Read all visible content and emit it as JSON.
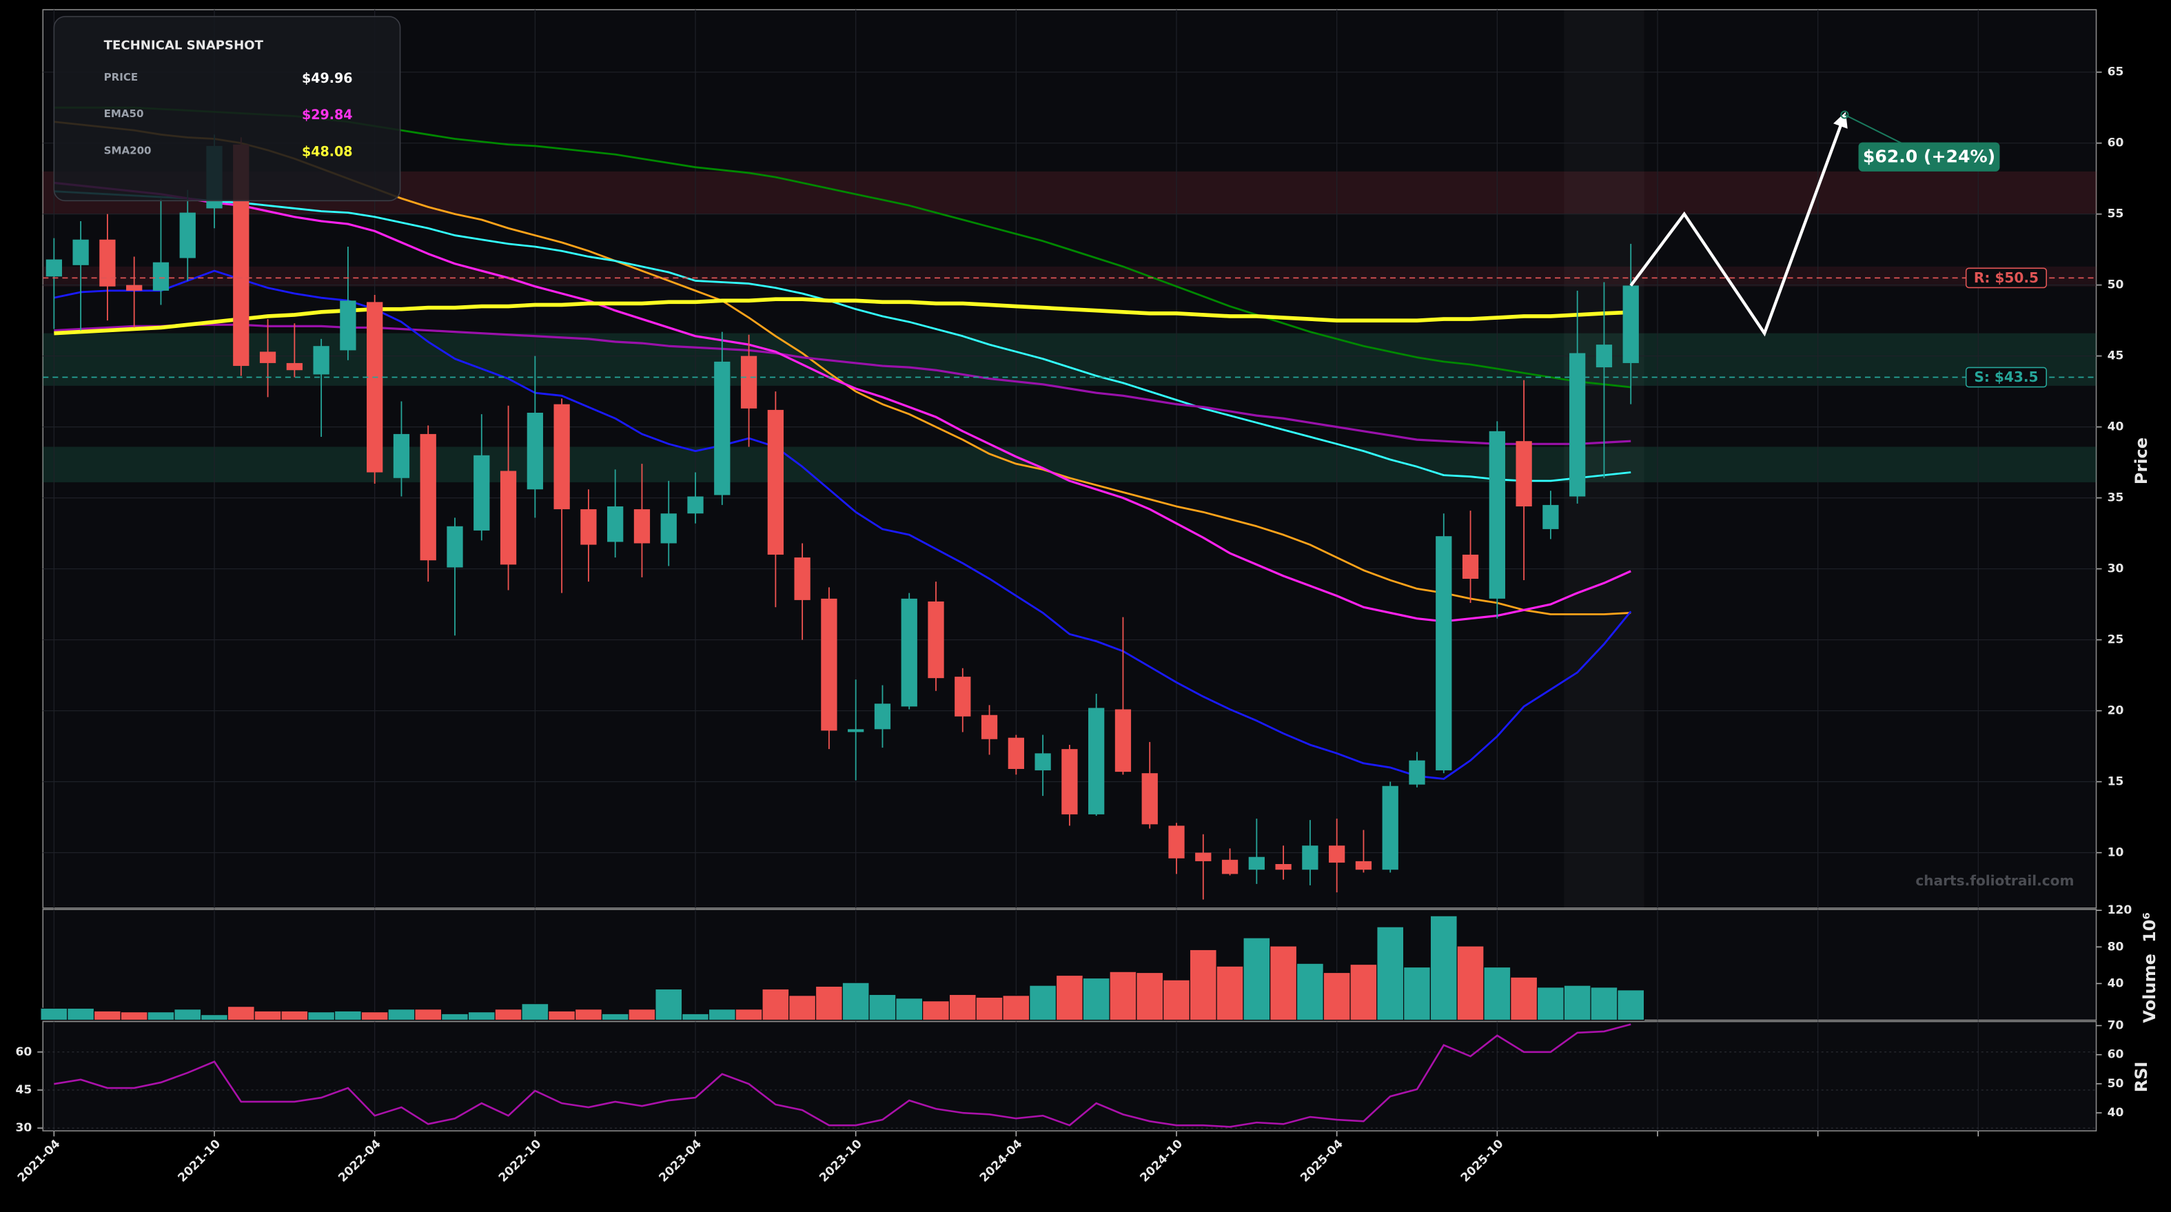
{
  "chart_data": {
    "type": "candlestick",
    "x": [
      "2021-04",
      "2021-05",
      "2021-06",
      "2021-07",
      "2021-08",
      "2021-09",
      "2021-10",
      "2021-11",
      "2021-12",
      "2022-01",
      "2022-02",
      "2022-03",
      "2022-04",
      "2022-05",
      "2022-06",
      "2022-07",
      "2022-08",
      "2022-09",
      "2022-10",
      "2022-11",
      "2022-12",
      "2023-01",
      "2023-02",
      "2023-03",
      "2023-04",
      "2023-05",
      "2023-06",
      "2023-07",
      "2023-08",
      "2023-09",
      "2023-10",
      "2023-11",
      "2023-12",
      "2024-01",
      "2024-02",
      "2024-03",
      "2024-04",
      "2024-05",
      "2024-06",
      "2024-07",
      "2024-08",
      "2024-09",
      "2024-10",
      "2024-11",
      "2024-12",
      "2025-01",
      "2025-02",
      "2025-03",
      "2025-04",
      "2025-05",
      "2025-06",
      "2025-07",
      "2025-08",
      "2025-09",
      "2025-10",
      "2025-11",
      "2025-12",
      "2026-01",
      "2026-02",
      "2026-03"
    ],
    "open": [
      50.6,
      51.4,
      53.2,
      50.0,
      49.6,
      51.9,
      55.4,
      59.9,
      45.3,
      44.5,
      43.7,
      45.4,
      48.8,
      36.4,
      39.5,
      30.1,
      32.7,
      36.9,
      35.6,
      41.6,
      34.2,
      31.9,
      34.2,
      31.8,
      33.9,
      35.2,
      45.0,
      41.2,
      30.8,
      27.9,
      18.5,
      18.7,
      20.3,
      27.7,
      22.4,
      19.7,
      18.1,
      15.8,
      17.3,
      12.7,
      20.1,
      15.6,
      11.9,
      10.0,
      9.5,
      8.8,
      9.2,
      8.8,
      10.5,
      9.4,
      8.8,
      14.8,
      15.8,
      31.0,
      27.9,
      39.0,
      32.8,
      35.1,
      44.2,
      44.5
    ],
    "high": [
      53.3,
      54.5,
      55.0,
      52.0,
      56.1,
      56.7,
      60.6,
      60.4,
      47.6,
      47.3,
      46.2,
      52.7,
      49.3,
      41.8,
      40.1,
      33.6,
      40.9,
      41.5,
      45.0,
      42.0,
      35.6,
      37.0,
      37.4,
      36.2,
      36.8,
      46.7,
      46.5,
      42.5,
      31.8,
      28.7,
      22.2,
      21.8,
      28.3,
      29.1,
      23.0,
      20.4,
      18.3,
      18.3,
      17.6,
      21.2,
      26.6,
      17.8,
      12.1,
      11.3,
      10.3,
      12.4,
      10.5,
      12.3,
      12.4,
      11.6,
      15.0,
      17.1,
      33.9,
      34.1,
      40.4,
      43.3,
      35.5,
      49.6,
      50.2,
      52.9
    ],
    "low": [
      46.9,
      46.8,
      47.5,
      47.0,
      48.6,
      50.3,
      54.0,
      43.6,
      42.1,
      43.5,
      39.3,
      44.7,
      36.0,
      35.1,
      29.1,
      25.3,
      32.0,
      28.5,
      33.6,
      28.3,
      29.1,
      30.8,
      29.4,
      30.2,
      33.2,
      34.5,
      38.6,
      27.3,
      25.0,
      17.3,
      15.1,
      17.4,
      20.1,
      21.4,
      18.5,
      16.9,
      15.5,
      14.0,
      11.9,
      12.6,
      15.5,
      11.7,
      8.5,
      6.7,
      8.4,
      7.8,
      8.1,
      7.7,
      7.2,
      8.6,
      8.6,
      14.6,
      15.6,
      27.6,
      26.5,
      29.2,
      32.1,
      34.6,
      36.4,
      41.6
    ],
    "close": [
      51.8,
      53.2,
      49.9,
      49.6,
      51.6,
      55.1,
      59.8,
      44.3,
      44.5,
      44.0,
      45.7,
      48.9,
      36.8,
      39.5,
      30.6,
      33.0,
      38.0,
      30.3,
      41.0,
      34.2,
      31.7,
      34.4,
      31.8,
      33.9,
      35.1,
      44.6,
      41.3,
      31.0,
      27.8,
      18.6,
      18.7,
      20.5,
      27.9,
      22.3,
      19.6,
      18.0,
      15.9,
      17.0,
      12.7,
      20.2,
      15.7,
      12.0,
      9.6,
      9.4,
      8.5,
      9.7,
      8.8,
      10.5,
      9.3,
      8.8,
      14.7,
      16.5,
      32.3,
      29.3,
      39.7,
      34.4,
      34.5,
      45.2,
      45.8,
      49.96
    ],
    "up_color": "#26a69a",
    "down_color": "#ef5350",
    "lines": [
      {
        "color": "#008800",
        "width": 1.4,
        "values": [
          62.5,
          62.5,
          62.5,
          62.5,
          62.4,
          62.3,
          62.2,
          62.1,
          62.0,
          61.9,
          61.7,
          61.5,
          61.2,
          60.9,
          60.6,
          60.3,
          60.1,
          59.9,
          59.8,
          59.6,
          59.4,
          59.2,
          58.9,
          58.6,
          58.3,
          58.1,
          57.9,
          57.6,
          57.2,
          56.8,
          56.4,
          56.0,
          55.6,
          55.1,
          54.6,
          54.1,
          53.6,
          53.1,
          52.5,
          51.9,
          51.3,
          50.6,
          49.9,
          49.2,
          48.5,
          47.9,
          47.3,
          46.7,
          46.2,
          45.7,
          45.3,
          44.9,
          44.6,
          44.4,
          44.1,
          43.8,
          43.5,
          43.2,
          43.0,
          42.8
        ]
      },
      {
        "color": "#ffa31a",
        "width": 1.4,
        "values": [
          61.5,
          61.3,
          61.1,
          60.9,
          60.6,
          60.4,
          60.3,
          60.0,
          59.5,
          58.9,
          58.2,
          57.5,
          56.8,
          56.1,
          55.5,
          55.0,
          54.6,
          54.0,
          53.5,
          53.0,
          52.4,
          51.7,
          51.0,
          50.3,
          49.6,
          48.9,
          47.7,
          46.4,
          45.2,
          43.8,
          42.5,
          41.6,
          40.9,
          40.0,
          39.1,
          38.1,
          37.4,
          37.0,
          36.4,
          35.9,
          35.4,
          34.9,
          34.4,
          34.0,
          33.5,
          33.0,
          32.4,
          31.7,
          30.8,
          29.9,
          29.2,
          28.6,
          28.3,
          27.9,
          27.6,
          27.1,
          26.8,
          26.8,
          26.8,
          26.9
        ]
      },
      {
        "color": "#33ffff",
        "width": 1.4,
        "values": [
          56.6,
          56.5,
          56.4,
          56.3,
          56.2,
          56.1,
          55.9,
          55.8,
          55.6,
          55.4,
          55.2,
          55.1,
          54.8,
          54.4,
          54.0,
          53.5,
          53.2,
          52.9,
          52.7,
          52.4,
          52.0,
          51.7,
          51.3,
          50.9,
          50.3,
          50.2,
          50.1,
          49.8,
          49.4,
          48.9,
          48.3,
          47.8,
          47.4,
          46.9,
          46.4,
          45.8,
          45.3,
          44.8,
          44.2,
          43.6,
          43.1,
          42.5,
          41.9,
          41.3,
          40.8,
          40.3,
          39.8,
          39.3,
          38.8,
          38.3,
          37.7,
          37.2,
          36.6,
          36.5,
          36.3,
          36.2,
          36.2,
          36.4,
          36.6,
          36.8
        ]
      },
      {
        "color": "#9911aa",
        "width": 1.6,
        "values": [
          46.8,
          46.9,
          47.0,
          47.1,
          47.1,
          47.2,
          47.2,
          47.2,
          47.1,
          47.1,
          47.1,
          47.0,
          47.0,
          46.9,
          46.8,
          46.7,
          46.6,
          46.5,
          46.4,
          46.3,
          46.2,
          46.0,
          45.9,
          45.7,
          45.6,
          45.5,
          45.4,
          45.2,
          44.9,
          44.7,
          44.5,
          44.3,
          44.2,
          44.0,
          43.7,
          43.4,
          43.2,
          43.0,
          42.7,
          42.4,
          42.2,
          41.9,
          41.6,
          41.4,
          41.1,
          40.8,
          40.6,
          40.3,
          40.0,
          39.7,
          39.4,
          39.1,
          39.0,
          38.9,
          38.8,
          38.8,
          38.8,
          38.8,
          38.9,
          39.0
        ]
      },
      {
        "color": "#1a1aff",
        "width": 1.4,
        "values": [
          49.1,
          49.5,
          49.6,
          49.6,
          49.6,
          50.3,
          51.0,
          50.4,
          49.8,
          49.4,
          49.1,
          48.9,
          48.3,
          47.4,
          46.0,
          44.8,
          44.1,
          43.4,
          42.4,
          42.2,
          41.4,
          40.6,
          39.5,
          38.8,
          38.3,
          38.7,
          39.2,
          38.6,
          37.2,
          35.6,
          34.0,
          32.8,
          32.4,
          31.4,
          30.4,
          29.3,
          28.1,
          26.9,
          25.4,
          24.9,
          24.2,
          23.1,
          22.0,
          21.0,
          20.1,
          19.3,
          18.4,
          17.6,
          17.0,
          16.3,
          16.0,
          15.4,
          15.2,
          16.5,
          18.2,
          20.3,
          21.5,
          22.7,
          24.7,
          27.0
        ]
      },
      {
        "color": "#ff22ee",
        "width": 1.6,
        "values": [
          57.2,
          57.0,
          56.8,
          56.6,
          56.4,
          56.1,
          55.8,
          55.6,
          55.2,
          54.8,
          54.5,
          54.3,
          53.8,
          53.0,
          52.2,
          51.5,
          51.0,
          50.5,
          49.9,
          49.4,
          48.9,
          48.2,
          47.6,
          47.0,
          46.4,
          46.1,
          45.8,
          45.3,
          44.4,
          43.5,
          42.7,
          42.1,
          41.4,
          40.7,
          39.7,
          38.8,
          37.9,
          37.1,
          36.2,
          35.6,
          35.0,
          34.2,
          33.2,
          32.2,
          31.1,
          30.3,
          29.5,
          28.8,
          28.1,
          27.3,
          26.9,
          26.5,
          26.3,
          26.5,
          26.7,
          27.1,
          27.5,
          28.3,
          29.0,
          29.84
        ]
      },
      {
        "color": "#ffff22",
        "width": 2.8,
        "values": [
          46.6,
          46.7,
          46.8,
          46.9,
          47.0,
          47.2,
          47.4,
          47.6,
          47.8,
          47.9,
          48.1,
          48.2,
          48.3,
          48.3,
          48.4,
          48.4,
          48.5,
          48.5,
          48.6,
          48.6,
          48.7,
          48.7,
          48.7,
          48.8,
          48.8,
          48.9,
          48.9,
          49.0,
          49.0,
          48.9,
          48.9,
          48.8,
          48.8,
          48.7,
          48.7,
          48.6,
          48.5,
          48.4,
          48.3,
          48.2,
          48.1,
          48.0,
          48.0,
          47.9,
          47.8,
          47.8,
          47.7,
          47.6,
          47.5,
          47.5,
          47.5,
          47.5,
          47.6,
          47.6,
          47.7,
          47.8,
          47.8,
          47.9,
          48.0,
          48.08
        ]
      }
    ],
    "zones": [
      {
        "from": 55.0,
        "to": 58.0,
        "color": "rgba(120,40,50,0.28)"
      },
      {
        "from": 49.9,
        "to": 51.3,
        "color": "rgba(120,40,50,0.2)"
      },
      {
        "from": 42.9,
        "to": 46.6,
        "color": "rgba(30,120,90,0.25)"
      },
      {
        "from": 36.1,
        "to": 38.6,
        "color": "rgba(30,120,90,0.25)"
      }
    ],
    "levels": [
      {
        "value": 50.5,
        "label": "R: $50.5",
        "color": "#e05555"
      },
      {
        "value": 43.5,
        "label": "S: $43.5",
        "color": "#26a69a"
      }
    ],
    "projection": {
      "x": [
        "2026-03",
        "2026-05",
        "2026-08",
        "2026-11"
      ],
      "values": [
        49.96,
        55.0,
        46.6,
        62.0
      ],
      "color": "#ffffff",
      "target_label": "$62.0 (+24%)",
      "target_color": "#1a7a5e"
    },
    "ylim": [
      6.1,
      69.4
    ],
    "yticks": [
      10,
      15,
      20,
      25,
      30,
      35,
      40,
      45,
      50,
      55,
      60,
      65
    ],
    "ylabel": "Price",
    "xlim": [
      "2021-04",
      "2027-08"
    ],
    "xticks": [
      {
        "value": "2021-04",
        "label": "2021-04"
      },
      {
        "value": "2021-10",
        "label": "2021-10"
      },
      {
        "value": "2022-04",
        "label": "2022-04"
      },
      {
        "value": "2022-10",
        "label": "2022-10"
      },
      {
        "value": "2023-04",
        "label": "2023-04"
      },
      {
        "value": "2023-10",
        "label": "2023-10"
      },
      {
        "value": "2024-04",
        "label": "2024-04"
      },
      {
        "value": "2024-10",
        "label": "2024-10"
      },
      {
        "value": "2025-04",
        "label": "2025-04"
      },
      {
        "value": "2025-10",
        "label": "2025-10"
      },
      {
        "value": "2026-04",
        "label": null
      },
      {
        "value": "2026-10",
        "label": null
      },
      {
        "value": "2027-04",
        "label": null
      }
    ],
    "grid": true,
    "watermark": "charts.foliotrail.com",
    "volume": {
      "values": [
        13,
        13,
        10,
        9,
        9,
        12,
        6,
        15,
        10,
        10,
        9,
        10,
        9,
        12,
        12,
        7,
        9,
        12,
        18,
        10,
        12,
        7,
        12,
        34,
        7,
        12,
        12,
        34,
        27,
        37,
        41,
        28,
        24,
        21,
        28,
        25,
        27,
        38,
        49,
        46,
        53,
        52,
        44,
        77,
        59,
        90,
        81,
        62,
        52,
        61,
        102,
        58,
        114,
        81,
        58,
        47,
        36,
        38,
        36,
        33
      ],
      "ylim": [
        0,
        121
      ],
      "yticks": [
        40,
        80,
        120
      ],
      "ylabel": "Volume",
      "exponent_label": "10⁶"
    },
    "rsi": {
      "values": [
        47.4,
        49.1,
        45.8,
        45.8,
        48.0,
        51.8,
        56.2,
        40.4,
        40.4,
        40.4,
        42.0,
        45.8,
        34.9,
        38.2,
        31.6,
        33.8,
        39.8,
        34.9,
        44.7,
        39.8,
        38.2,
        40.4,
        38.7,
        40.9,
        42.0,
        51.3,
        47.4,
        39.3,
        37.1,
        31.1,
        31.1,
        33.3,
        40.9,
        37.6,
        36.0,
        35.4,
        33.8,
        34.9,
        31.1,
        39.8,
        35.4,
        32.7,
        31.1,
        31.1,
        30.5,
        32.2,
        31.6,
        34.4,
        33.3,
        32.7,
        42.5,
        45.3,
        62.7,
        58.3,
        66.5,
        60.0,
        60.0,
        67.6,
        68.1,
        70.9
      ],
      "color": "#aa11aa",
      "ylim": [
        28.9,
        72.0
      ],
      "yticks": [
        30,
        45,
        60
      ],
      "y2lim": [
        33.8,
        71.4
      ],
      "y2ticks": [
        40,
        50,
        60,
        70
      ],
      "ylabel": "RSI"
    }
  },
  "snapshot": {
    "title": "TECHNICAL SNAPSHOT",
    "rows": [
      {
        "label": "PRICE",
        "value": "$49.96",
        "color": "#ffffff"
      },
      {
        "label": "EMA50",
        "value": "$29.84",
        "color": "#ff33ee"
      },
      {
        "label": "SMA200",
        "value": "$48.08",
        "color": "#ffff33"
      }
    ]
  }
}
